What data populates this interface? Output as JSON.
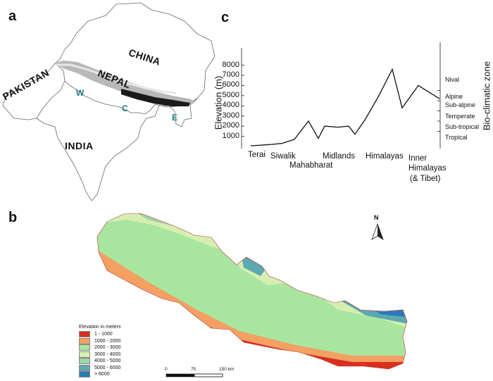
{
  "panels": {
    "a": "a",
    "b": "b",
    "c": "c"
  },
  "map_a": {
    "countries": [
      "CHINA",
      "NEPAL",
      "PAKISTAN",
      "INDIA"
    ],
    "regions": [
      "W",
      "C",
      "E"
    ]
  },
  "profile_c": {
    "ylabel": "Elevation (m)",
    "right_label": "Bio-climatic zone",
    "y_ticks": [
      "1000",
      "2000",
      "3000",
      "4000",
      "5000",
      "6000",
      "7000",
      "8000"
    ],
    "x_labels": {
      "terai": "Terai",
      "siwalik": "Siwalik",
      "mahabharat": "Mahabharat",
      "midlands": "Midlands",
      "himalayas": "Himalayas",
      "inner1": "Inner",
      "inner2": "Himalayas",
      "inner3": "(& Tibet)"
    },
    "zones": [
      "Nival",
      "Alpine",
      "Sub-alpine",
      "Temperate",
      "Sub-tropical",
      "Tropical"
    ]
  },
  "chart_data": {
    "type": "line",
    "title": "",
    "ylabel": "Elevation (m)",
    "ylim": [
      0,
      9000
    ],
    "x_categories": [
      "Terai",
      "Siwalik",
      "Mahabharat",
      "Midlands",
      "Himalayas",
      "Inner Himalayas (& Tibet)"
    ],
    "profile_elevation_m": [
      60,
      200,
      300,
      700,
      2500,
      800,
      2000,
      1900,
      2000,
      1200,
      2600,
      5000,
      7600,
      3800,
      6000,
      4700
    ],
    "zone_boundaries_m": [
      1000,
      2000,
      3000,
      4000,
      5000
    ]
  },
  "legend_b": {
    "title": "Elevation in meters",
    "items": [
      {
        "label": "1 - 1000",
        "color": "#d7301f"
      },
      {
        "label": "1000 - 2000",
        "color": "#f4a062"
      },
      {
        "label": "2000 - 3000",
        "color": "#a8e6a0"
      },
      {
        "label": "3000 - 4000",
        "color": "#d6efb0"
      },
      {
        "label": "4000 - 5000",
        "color": "#9fd3a6"
      },
      {
        "label": "5000 - 6000",
        "color": "#5ba8b0"
      },
      {
        "label": "> 6000",
        "color": "#2b7bb9"
      }
    ]
  },
  "scalebar": {
    "t0": "0",
    "t1": "75",
    "t2": "150 km"
  },
  "north": "N"
}
